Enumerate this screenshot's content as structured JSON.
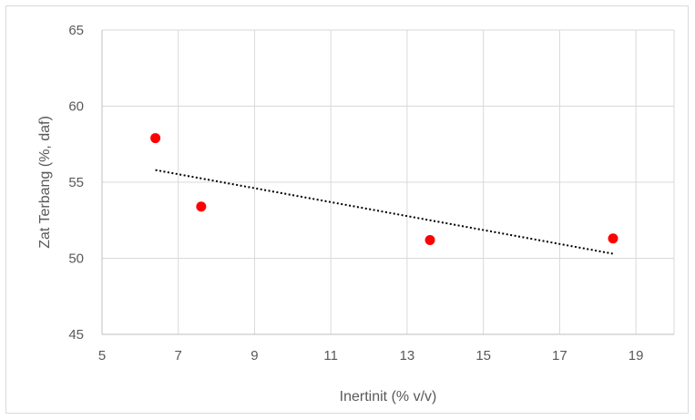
{
  "chart_data": {
    "type": "scatter",
    "title": "",
    "xlabel": "Inertinit (% v/v)",
    "ylabel": "Zat Terbang (%, daf)",
    "xlim": [
      5,
      20
    ],
    "ylim": [
      45,
      65
    ],
    "x_ticks": [
      5,
      7,
      9,
      11,
      13,
      15,
      17,
      19
    ],
    "y_ticks": [
      45,
      50,
      55,
      60,
      65
    ],
    "grid": true,
    "legend": "none",
    "series": [
      {
        "x": [
          6.4,
          7.6,
          13.6,
          18.4
        ],
        "y": [
          57.9,
          53.4,
          51.2,
          51.3
        ],
        "color": "#ff0000"
      }
    ],
    "trendline": {
      "type": "linear",
      "style": "dotted",
      "color": "#000000",
      "x": [
        6.4,
        18.4
      ],
      "y": [
        55.8,
        50.3
      ]
    }
  }
}
